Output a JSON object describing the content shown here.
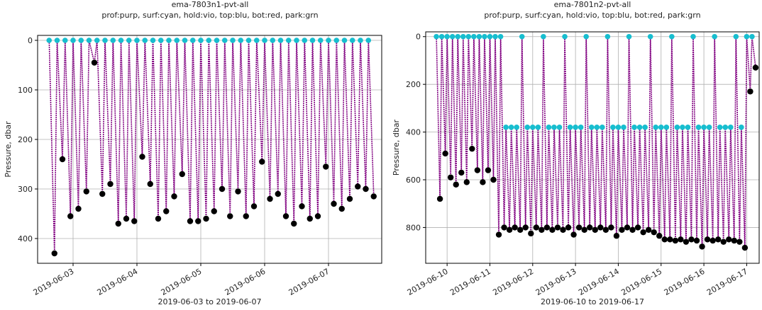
{
  "chart_data": [
    {
      "type": "line",
      "title": "ema-7803n1-pvt-all",
      "subtitle": "prof:purp, surf:cyan, hold:vio, top:blu, bot:red, park:grn",
      "xlabel": "2019-06-03 to 2019-06-07",
      "ylabel": "Pressure, dbar",
      "x": [
        "2019-06-02 15:00",
        "2019-06-02 17:00",
        "2019-06-02 18:00",
        "2019-06-02 20:00",
        "2019-06-02 21:00",
        "2019-06-02 23:00",
        "2019-06-03 00:00",
        "2019-06-03 02:00",
        "2019-06-03 03:00",
        "2019-06-03 05:00",
        "2019-06-03 06:00",
        "2019-06-03 08:00",
        "2019-06-03 09:00",
        "2019-06-03 11:00",
        "2019-06-03 12:00",
        "2019-06-03 14:00",
        "2019-06-03 15:00",
        "2019-06-03 17:00",
        "2019-06-03 18:00",
        "2019-06-03 20:00",
        "2019-06-03 21:00",
        "2019-06-03 23:00",
        "2019-06-04 00:00",
        "2019-06-04 02:00",
        "2019-06-04 03:00",
        "2019-06-04 05:00",
        "2019-06-04 06:00",
        "2019-06-04 08:00",
        "2019-06-04 09:00",
        "2019-06-04 11:00",
        "2019-06-04 12:00",
        "2019-06-04 14:00",
        "2019-06-04 15:00",
        "2019-06-04 17:00",
        "2019-06-04 18:00",
        "2019-06-04 20:00",
        "2019-06-04 21:00",
        "2019-06-04 23:00",
        "2019-06-05 00:00",
        "2019-06-05 02:00",
        "2019-06-05 03:00",
        "2019-06-05 05:00",
        "2019-06-05 06:00",
        "2019-06-05 08:00",
        "2019-06-05 09:00",
        "2019-06-05 11:00",
        "2019-06-05 12:00",
        "2019-06-05 14:00",
        "2019-06-05 15:00",
        "2019-06-05 17:00",
        "2019-06-05 18:00",
        "2019-06-05 20:00",
        "2019-06-05 21:00",
        "2019-06-05 23:00",
        "2019-06-06 00:00",
        "2019-06-06 02:00",
        "2019-06-06 03:00",
        "2019-06-06 05:00",
        "2019-06-06 06:00",
        "2019-06-06 08:00",
        "2019-06-06 09:00",
        "2019-06-06 11:00",
        "2019-06-06 12:00",
        "2019-06-06 14:00",
        "2019-06-06 15:00",
        "2019-06-06 17:00",
        "2019-06-06 18:00",
        "2019-06-06 20:00",
        "2019-06-06 21:00",
        "2019-06-06 23:00",
        "2019-06-07 00:00",
        "2019-06-07 02:00",
        "2019-06-07 03:00",
        "2019-06-07 05:00",
        "2019-06-07 06:00",
        "2019-06-07 08:00",
        "2019-06-07 09:00",
        "2019-06-07 11:00",
        "2019-06-07 12:00",
        "2019-06-07 14:00",
        "2019-06-07 15:00",
        "2019-06-07 17:00"
      ],
      "series": [
        {
          "color": "#800080",
          "top_marker_color": "#17becf",
          "bottom_marker_color": "#000000",
          "values": [
            0,
            430,
            0,
            240,
            0,
            355,
            0,
            340,
            0,
            305,
            0,
            45,
            0,
            310,
            0,
            290,
            0,
            370,
            0,
            360,
            0,
            365,
            0,
            235,
            0,
            290,
            0,
            360,
            0,
            345,
            0,
            315,
            0,
            270,
            0,
            365,
            0,
            365,
            0,
            360,
            0,
            345,
            0,
            300,
            0,
            355,
            0,
            305,
            0,
            355,
            0,
            335,
            0,
            245,
            0,
            320,
            0,
            310,
            0,
            355,
            0,
            370,
            0,
            335,
            0,
            360,
            0,
            355,
            0,
            255,
            0,
            330,
            0,
            340,
            0,
            320,
            0,
            295,
            0,
            300,
            0,
            315
          ]
        }
      ],
      "xlim": [
        "2019-06-02 10:40",
        "2019-06-07 20:00"
      ],
      "ylim": [
        -10,
        450
      ],
      "y_inverted": true,
      "grid": true,
      "xticks": [
        {
          "value": "2019-06-03 00:00",
          "label": "2019-06-03"
        },
        {
          "value": "2019-06-04 00:00",
          "label": "2019-06-04"
        },
        {
          "value": "2019-06-05 00:00",
          "label": "2019-06-05"
        },
        {
          "value": "2019-06-06 00:00",
          "label": "2019-06-06"
        },
        {
          "value": "2019-06-07 00:00",
          "label": "2019-06-07"
        }
      ],
      "yticks": [
        0,
        100,
        200,
        300,
        400
      ]
    },
    {
      "type": "line",
      "title": "ema-7801n2-pvt-all",
      "subtitle": "prof:purp, surf:cyan, hold:vio, top:blu, bot:red, park:grn",
      "xlabel": "2019-06-10 to 2019-06-17",
      "ylabel": "Pressure, dbar",
      "x": [
        "2019-06-09 18:00",
        "2019-06-09 20:00",
        "2019-06-09 21:00",
        "2019-06-09 23:00",
        "2019-06-10 00:00",
        "2019-06-10 02:00",
        "2019-06-10 03:00",
        "2019-06-10 05:00",
        "2019-06-10 06:00",
        "2019-06-10 08:00",
        "2019-06-10 09:00",
        "2019-06-10 11:00",
        "2019-06-10 12:00",
        "2019-06-10 14:00",
        "2019-06-10 15:00",
        "2019-06-10 17:00",
        "2019-06-10 18:00",
        "2019-06-10 20:00",
        "2019-06-10 21:00",
        "2019-06-10 23:00",
        "2019-06-11 00:00",
        "2019-06-11 02:00",
        "2019-06-11 03:00",
        "2019-06-11 05:00",
        "2019-06-11 06:00",
        "2019-06-11 08:00",
        "2019-06-11 09:00",
        "2019-06-11 11:00",
        "2019-06-11 12:00",
        "2019-06-11 14:00",
        "2019-06-11 15:00",
        "2019-06-11 17:00",
        "2019-06-11 18:00",
        "2019-06-11 20:00",
        "2019-06-11 21:00",
        "2019-06-11 23:00",
        "2019-06-12 00:00",
        "2019-06-12 02:00",
        "2019-06-12 03:00",
        "2019-06-12 05:00",
        "2019-06-12 06:00",
        "2019-06-12 08:00",
        "2019-06-12 09:00",
        "2019-06-12 11:00",
        "2019-06-12 12:00",
        "2019-06-12 14:00",
        "2019-06-12 15:00",
        "2019-06-12 17:00",
        "2019-06-12 18:00",
        "2019-06-12 20:00",
        "2019-06-12 21:00",
        "2019-06-12 23:00",
        "2019-06-13 00:00",
        "2019-06-13 02:00",
        "2019-06-13 03:00",
        "2019-06-13 05:00",
        "2019-06-13 06:00",
        "2019-06-13 08:00",
        "2019-06-13 09:00",
        "2019-06-13 11:00",
        "2019-06-13 12:00",
        "2019-06-13 14:00",
        "2019-06-13 15:00",
        "2019-06-13 17:00",
        "2019-06-13 18:00",
        "2019-06-13 20:00",
        "2019-06-13 21:00",
        "2019-06-13 23:00",
        "2019-06-14 00:00",
        "2019-06-14 02:00",
        "2019-06-14 03:00",
        "2019-06-14 05:00",
        "2019-06-14 06:00",
        "2019-06-14 08:00",
        "2019-06-14 09:00",
        "2019-06-14 11:00",
        "2019-06-14 12:00",
        "2019-06-14 14:00",
        "2019-06-14 15:00",
        "2019-06-14 17:00",
        "2019-06-14 18:00",
        "2019-06-14 20:00",
        "2019-06-14 21:00",
        "2019-06-14 23:00",
        "2019-06-15 00:00",
        "2019-06-15 02:00",
        "2019-06-15 03:00",
        "2019-06-15 05:00",
        "2019-06-15 06:00",
        "2019-06-15 08:00",
        "2019-06-15 09:00",
        "2019-06-15 11:00",
        "2019-06-15 12:00",
        "2019-06-15 14:00",
        "2019-06-15 15:00",
        "2019-06-15 17:00",
        "2019-06-15 18:00",
        "2019-06-15 20:00",
        "2019-06-15 21:00",
        "2019-06-15 23:00",
        "2019-06-16 00:00",
        "2019-06-16 02:00",
        "2019-06-16 03:00",
        "2019-06-16 05:00",
        "2019-06-16 06:00",
        "2019-06-16 08:00",
        "2019-06-16 09:00",
        "2019-06-16 11:00",
        "2019-06-16 12:00",
        "2019-06-16 14:00",
        "2019-06-16 15:00",
        "2019-06-16 17:00",
        "2019-06-16 18:00",
        "2019-06-16 20:00",
        "2019-06-16 21:00",
        "2019-06-16 23:00",
        "2019-06-17 00:00",
        "2019-06-17 02:00",
        "2019-06-17 03:00",
        "2019-06-17 05:00"
      ],
      "series": [
        {
          "color": "#800080",
          "top_marker_color": "#17becf",
          "bottom_marker_color": "#000000",
          "values": [
            0,
            680,
            0,
            490,
            0,
            590,
            0,
            620,
            0,
            570,
            0,
            610,
            0,
            470,
            0,
            560,
            0,
            610,
            0,
            560,
            0,
            600,
            0,
            830,
            0,
            800,
            380,
            810,
            380,
            800,
            380,
            810,
            0,
            800,
            380,
            825,
            380,
            800,
            380,
            810,
            0,
            800,
            380,
            810,
            380,
            800,
            380,
            810,
            0,
            800,
            380,
            830,
            380,
            800,
            380,
            810,
            0,
            800,
            380,
            810,
            380,
            800,
            380,
            810,
            0,
            800,
            380,
            835,
            380,
            810,
            380,
            800,
            0,
            810,
            380,
            800,
            380,
            820,
            380,
            810,
            0,
            820,
            380,
            835,
            380,
            850,
            380,
            850,
            0,
            855,
            380,
            850,
            380,
            860,
            380,
            850,
            0,
            855,
            380,
            880,
            380,
            850,
            380,
            855,
            0,
            850,
            380,
            860,
            380,
            850,
            380,
            855,
            0,
            860,
            380,
            885,
            0,
            230,
            0,
            130
          ]
        }
      ],
      "xlim": [
        "2019-06-09 12:00",
        "2019-06-17 07:00"
      ],
      "ylim": [
        -20,
        950
      ],
      "y_inverted": true,
      "grid": true,
      "xticks": [
        {
          "value": "2019-06-10 00:00",
          "label": "2019-06-10"
        },
        {
          "value": "2019-06-11 00:00",
          "label": "2019-06-11"
        },
        {
          "value": "2019-06-12 00:00",
          "label": "2019-06-12"
        },
        {
          "value": "2019-06-13 00:00",
          "label": "2019-06-13"
        },
        {
          "value": "2019-06-14 00:00",
          "label": "2019-06-14"
        },
        {
          "value": "2019-06-15 00:00",
          "label": "2019-06-15"
        },
        {
          "value": "2019-06-16 00:00",
          "label": "2019-06-16"
        },
        {
          "value": "2019-06-17 00:00",
          "label": "2019-06-17"
        }
      ],
      "yticks": [
        0,
        200,
        400,
        600,
        800
      ]
    }
  ]
}
